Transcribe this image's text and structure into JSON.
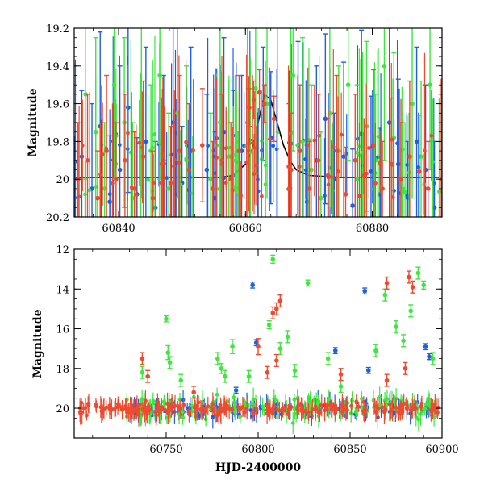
{
  "chart_data": [
    {
      "type": "scatter",
      "title": "",
      "xlabel": "",
      "ylabel": "Magnitude",
      "xlim": [
        60833,
        60891
      ],
      "ylim": [
        20.2,
        19.2
      ],
      "y_inverted": true,
      "x_ticks": [
        60840,
        60860,
        60880
      ],
      "y_ticks": [
        19.2,
        19.4,
        19.6,
        19.8,
        20,
        20.2
      ],
      "x_tick_labels": [
        "60840",
        "60860",
        "60880"
      ],
      "y_tick_labels": [
        "19.2",
        "19.4",
        "19.6",
        "19.8",
        "20",
        "20.2"
      ],
      "model_curve": {
        "color": "#000000",
        "x": [
          60833,
          60836,
          60840,
          60845,
          60850,
          60852,
          60854,
          60856,
          60858,
          60860,
          60861,
          60862,
          60863,
          60864,
          60865,
          60866,
          60867,
          60868,
          60870,
          60875,
          60880,
          60885,
          60891
        ],
        "y": [
          19.99,
          19.99,
          19.99,
          19.99,
          19.99,
          19.99,
          19.99,
          19.99,
          19.98,
          19.92,
          19.85,
          19.7,
          19.55,
          19.58,
          19.7,
          19.82,
          19.9,
          19.95,
          19.98,
          19.99,
          19.99,
          19.99,
          19.99
        ]
      },
      "series": [
        {
          "name": "",
          "color": "#1f5fe6",
          "x": [
            60834.2,
            60835.8,
            60837.1,
            60838.6,
            60840.2,
            60841.5,
            60842.9,
            60844.3,
            60845.8,
            60847.1,
            60848.6,
            60850.0,
            60851.4,
            60853.9,
            60855.2,
            60856.6,
            60858.1,
            60859.4,
            60862.8,
            60864.0,
            60866.9,
            60868.3,
            60869.7,
            60871.2,
            60872.6,
            60874.0,
            60875.5,
            60876.9,
            60878.3,
            60879.8,
            60881.2,
            60882.7,
            60884.1,
            60885.6,
            60887.0,
            60888.4,
            60889.8
          ],
          "y": [
            19.88,
            20.05,
            19.72,
            20.12,
            19.95,
            19.62,
            20.08,
            19.8,
            20.15,
            19.9,
            19.7,
            20.02,
            19.85,
            19.95,
            20.1,
            19.75,
            19.98,
            19.85,
            19.6,
            19.78,
            20.05,
            19.82,
            20.12,
            19.9,
            19.68,
            20.0,
            19.88,
            20.14,
            19.76,
            19.96,
            20.08,
            19.7,
            19.92,
            20.1,
            19.8,
            19.95,
            20.15
          ],
          "yerr": [
            0.35,
            0.45,
            0.5,
            0.35,
            0.55,
            0.45,
            0.3,
            0.5,
            0.35,
            0.45,
            0.5,
            0.3,
            0.55,
            0.4,
            0.35,
            0.5,
            0.45,
            0.4,
            0.3,
            0.35,
            0.45,
            0.55,
            0.3,
            0.5,
            0.45,
            0.35,
            0.5,
            0.3,
            0.55,
            0.4,
            0.35,
            0.5,
            0.45,
            0.3,
            0.5,
            0.45,
            0.35
          ]
        },
        {
          "name": "",
          "color": "#3ee63e",
          "x": [
            60834.8,
            60836.4,
            60837.8,
            60839.3,
            60840.9,
            60842.2,
            60843.6,
            60845.1,
            60846.5,
            60847.9,
            60849.3,
            60850.7,
            60854.5,
            60856.0,
            60857.4,
            60858.8,
            60860.3,
            60861.6,
            60863.4,
            60867.5,
            60869.0,
            60870.4,
            60871.9,
            60873.3,
            60874.7,
            60876.2,
            60877.6,
            60879.1,
            60880.5,
            60881.9,
            60883.4,
            60884.8,
            60886.3,
            60887.7,
            60889.1
          ],
          "y": [
            19.55,
            19.75,
            20.05,
            19.5,
            19.7,
            20.1,
            19.6,
            19.85,
            19.45,
            20.05,
            19.65,
            19.9,
            20.0,
            19.7,
            19.88,
            20.05,
            19.7,
            19.52,
            19.6,
            19.45,
            19.8,
            19.95,
            20.1,
            19.65,
            19.85,
            19.5,
            20.0,
            19.72,
            19.9,
            19.4,
            19.78,
            20.05,
            19.6,
            19.88,
            19.5
          ],
          "yerr": [
            0.45,
            0.5,
            0.35,
            0.5,
            0.45,
            0.4,
            0.5,
            0.35,
            0.55,
            0.4,
            0.45,
            0.5,
            0.35,
            0.5,
            0.4,
            0.3,
            0.5,
            0.45,
            0.5,
            0.4,
            0.55,
            0.45,
            0.35,
            0.5,
            0.45,
            0.4,
            0.5,
            0.45,
            0.35,
            0.5,
            0.45,
            0.35,
            0.5,
            0.4,
            0.45
          ]
        },
        {
          "name": "",
          "color": "#ee4a30",
          "x": [
            60833.6,
            60835.1,
            60836.7,
            60838.1,
            60839.6,
            60841.0,
            60842.5,
            60843.9,
            60845.4,
            60846.8,
            60848.2,
            60849.6,
            60851.1,
            60853.2,
            60854.8,
            60856.3,
            60857.7,
            60859.0,
            60860.6,
            60861.3,
            60862.2,
            60863.0,
            60864.5,
            60867.2,
            60868.6,
            60870.1,
            60871.5,
            60873.0,
            60874.4,
            60875.8,
            60877.3,
            60878.7,
            60880.2,
            60881.6,
            60883.0,
            60884.5,
            60885.9,
            60887.4,
            60888.8
          ],
          "y": [
            20.0,
            19.9,
            20.1,
            19.85,
            20.0,
            19.9,
            20.05,
            19.88,
            20.1,
            19.92,
            20.02,
            19.85,
            19.95,
            19.82,
            20.05,
            19.9,
            20.0,
            19.85,
            19.62,
            19.58,
            19.54,
            19.6,
            19.68,
            19.95,
            19.85,
            20.05,
            19.9,
            19.98,
            19.85,
            20.08,
            19.9,
            19.98,
            19.82,
            20.05,
            19.92,
            20.0,
            19.88,
            19.96,
            20.05
          ],
          "yerr": [
            0.3,
            0.35,
            0.25,
            0.4,
            0.3,
            0.35,
            0.3,
            0.4,
            0.25,
            0.35,
            0.3,
            0.4,
            0.35,
            0.3,
            0.25,
            0.35,
            0.3,
            0.4,
            0.1,
            0.1,
            0.12,
            0.1,
            0.12,
            0.3,
            0.35,
            0.25,
            0.35,
            0.3,
            0.4,
            0.25,
            0.35,
            0.3,
            0.4,
            0.25,
            0.35,
            0.3,
            0.4,
            0.3,
            0.25
          ]
        }
      ]
    },
    {
      "type": "scatter",
      "title": "",
      "xlabel": "HJD-2400000",
      "ylabel": "Magnitude",
      "xlim": [
        60700,
        60900
      ],
      "ylim": [
        21.5,
        12
      ],
      "y_inverted": true,
      "x_ticks": [
        60750,
        60800,
        60850,
        60900
      ],
      "y_ticks": [
        12,
        14,
        16,
        18,
        20
      ],
      "x_tick_labels": [
        "60750",
        "60800",
        "60850",
        "60900"
      ],
      "y_tick_labels": [
        "12",
        "14",
        "16",
        "18",
        "20"
      ],
      "series": [
        {
          "name": "",
          "color": "#1f5fe6",
          "outliers": {
            "x": [
              60797,
              60799,
              60842,
              60858,
              60860,
              60891,
              60893,
              60788
            ],
            "y": [
              13.8,
              16.7,
              17.1,
              14.1,
              18.1,
              16.9,
              17.4,
              19.1
            ]
          },
          "baseline": {
            "x_start": 60728,
            "x_end": 60896,
            "count": 130,
            "mean": 20.05,
            "spread": 0.35
          }
        },
        {
          "name": "",
          "color": "#3ee63e",
          "outliers": {
            "x": [
              60750,
              60751,
              60752,
              60778,
              60780,
              60782,
              60786,
              60806,
              60808,
              60812,
              60816,
              60820,
              60827,
              60838,
              60845,
              60864,
              60869,
              60875,
              60879,
              60883,
              60887,
              60890,
              60895,
              60737,
              60758,
              60795
            ],
            "y": [
              15.5,
              17.2,
              17.7,
              17.5,
              18.0,
              18.4,
              16.9,
              15.8,
              12.5,
              17.0,
              16.4,
              18.1,
              13.7,
              17.5,
              18.9,
              17.1,
              14.3,
              15.9,
              16.6,
              15.1,
              13.2,
              13.8,
              17.5,
              18.2,
              18.6,
              18.4
            ],
            "yerr": [
              0.15,
              0.35,
              0.3,
              0.3,
              0.25,
              0.3,
              0.35,
              0.2,
              0.2,
              0.3,
              0.3,
              0.3,
              0.15,
              0.3,
              0.3,
              0.3,
              0.3,
              0.3,
              0.3,
              0.3,
              0.3,
              0.2,
              0.3,
              0.3,
              0.3,
              0.3
            ]
          },
          "baseline": {
            "x_start": 60728,
            "x_end": 60896,
            "count": 150,
            "mean": 19.95,
            "spread": 0.6
          }
        },
        {
          "name": "",
          "color": "#ee4a30",
          "outliers": {
            "x": [
              60737,
              60740,
              60765,
              60800,
              60808,
              60810,
              60812,
              60805,
              60810,
              60845,
              60870,
              60882,
              60884,
              60870,
              60880
            ],
            "y": [
              17.5,
              18.4,
              19.2,
              16.9,
              15.2,
              15.0,
              14.6,
              18.2,
              17.6,
              18.3,
              13.7,
              13.4,
              13.9,
              18.6,
              18.0
            ],
            "yerr": [
              0.3,
              0.3,
              0.3,
              0.4,
              0.3,
              0.3,
              0.3,
              0.3,
              0.3,
              0.3,
              0.3,
              0.3,
              0.3,
              0.3,
              0.3
            ]
          },
          "baseline": {
            "x_start": 60703,
            "x_end": 60898,
            "count": 230,
            "mean": 20.02,
            "spread": 0.3
          }
        }
      ]
    }
  ]
}
